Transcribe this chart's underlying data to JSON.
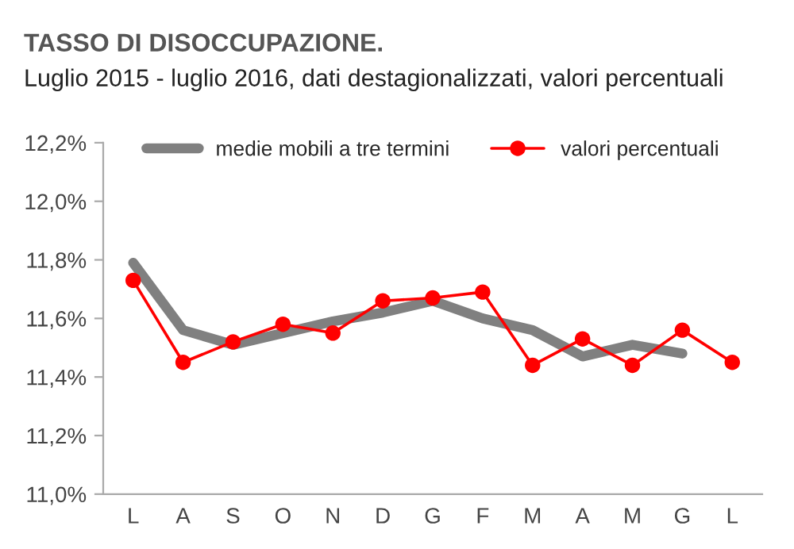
{
  "chart_data": {
    "type": "line",
    "title": "TASSO DI DISOCCUPAZIONE.",
    "subtitle": "Luglio 2015 - luglio 2016, dati destagionalizzati, valori percentuali",
    "categories": [
      "L",
      "A",
      "S",
      "O",
      "N",
      "D",
      "G",
      "F",
      "M",
      "A",
      "M",
      "G",
      "L"
    ],
    "series": [
      {
        "name": "medie mobili a tre termini",
        "color": "#808080",
        "marker": "none",
        "values": [
          11.79,
          11.56,
          11.51,
          11.55,
          11.59,
          11.62,
          11.66,
          11.6,
          11.56,
          11.47,
          11.51,
          11.48,
          null
        ]
      },
      {
        "name": "valori percentuali",
        "color": "#ff0000",
        "marker": "circle",
        "values": [
          11.73,
          11.45,
          11.52,
          11.58,
          11.55,
          11.66,
          11.67,
          11.69,
          11.44,
          11.53,
          11.44,
          11.56,
          11.45
        ]
      }
    ],
    "ylim": [
      11.0,
      12.2
    ],
    "yticks": [
      {
        "value": 11.0,
        "label": "11,0%"
      },
      {
        "value": 11.2,
        "label": "11,2%"
      },
      {
        "value": 11.4,
        "label": "11,4%"
      },
      {
        "value": 11.6,
        "label": "11,6%"
      },
      {
        "value": 11.8,
        "label": "11,8%"
      },
      {
        "value": 12.0,
        "label": "12,0%"
      },
      {
        "value": 12.2,
        "label": "12,2%"
      }
    ],
    "grid": false,
    "legend": "top"
  }
}
